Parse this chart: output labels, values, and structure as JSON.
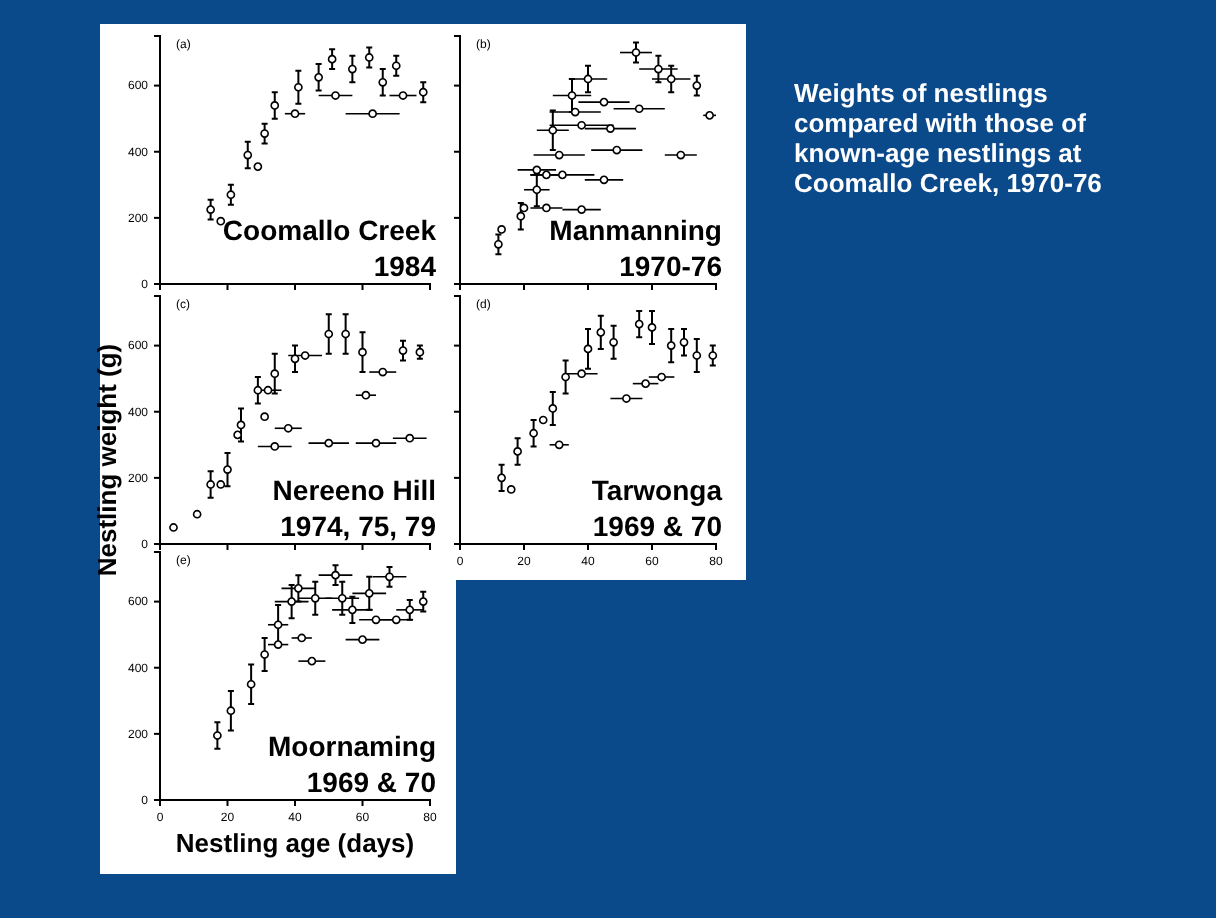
{
  "chart_data": [
    {
      "type": "scatter",
      "annotations": [
        "(a)",
        "Coomallo Creek",
        "1984"
      ],
      "xlim": [
        0,
        80
      ],
      "xticks": [
        0,
        20,
        40,
        60,
        80
      ],
      "ylim": [
        0,
        750
      ],
      "yticks": [
        0,
        200,
        400,
        600
      ],
      "tick_labels": "y",
      "marker": "circle",
      "grid": false,
      "series": [
        {
          "color": "#000000",
          "x": [
            15,
            18,
            21,
            26,
            29,
            31,
            34,
            40,
            41,
            47,
            51,
            52,
            57,
            62,
            63,
            66,
            70,
            72,
            78
          ],
          "values": [
            225,
            190,
            270,
            390,
            355,
            455,
            540,
            515,
            595,
            625,
            680,
            570,
            650,
            685,
            515,
            610,
            660,
            570,
            580
          ],
          "errors": [
            30,
            null,
            30,
            40,
            null,
            30,
            40,
            null,
            50,
            40,
            30,
            null,
            40,
            30,
            null,
            40,
            30,
            null,
            30
          ],
          "xerrors": [
            null,
            null,
            null,
            null,
            null,
            null,
            null,
            3,
            null,
            null,
            null,
            5,
            null,
            null,
            8,
            null,
            null,
            4,
            null
          ]
        }
      ]
    },
    {
      "type": "scatter",
      "annotations": [
        "(b)",
        "Manmanning",
        "1970-76"
      ],
      "xlim": [
        0,
        80
      ],
      "xticks": [
        0,
        20,
        40,
        60,
        80
      ],
      "ylim": [
        0,
        750
      ],
      "yticks": [
        0,
        200,
        400,
        600
      ],
      "tick_labels": false,
      "marker": "circle",
      "grid": false,
      "series": [
        {
          "color": "#000000",
          "x": [
            12,
            13,
            19,
            20,
            24,
            24,
            27,
            29,
            31,
            32,
            35,
            36,
            38,
            40,
            45,
            47,
            45,
            49,
            55,
            56,
            62,
            66,
            69,
            74,
            78,
            38,
            27
          ],
          "values": [
            120,
            165,
            205,
            230,
            285,
            345,
            330,
            465,
            390,
            330,
            570,
            520,
            480,
            620,
            550,
            470,
            315,
            405,
            700,
            530,
            650,
            620,
            390,
            600,
            510,
            225,
            230
          ],
          "errors": [
            30,
            null,
            40,
            null,
            50,
            null,
            null,
            60,
            null,
            null,
            50,
            null,
            null,
            40,
            null,
            null,
            null,
            null,
            30,
            null,
            40,
            40,
            null,
            30,
            null,
            null,
            null
          ],
          "xerrors": [
            null,
            null,
            null,
            null,
            4,
            6,
            5,
            5,
            8,
            10,
            6,
            8,
            10,
            6,
            8,
            8,
            6,
            8,
            5,
            8,
            6,
            6,
            5,
            null,
            2,
            6,
            5
          ]
        }
      ]
    },
    {
      "type": "scatter",
      "ylabel": "Nestling weight (g)",
      "annotations": [
        "(c)",
        "Nereeno Hill",
        "1974, 75, 79"
      ],
      "xlim": [
        0,
        80
      ],
      "xticks": [
        0,
        20,
        40,
        60,
        80
      ],
      "ylim": [
        0,
        750
      ],
      "yticks": [
        0,
        200,
        400,
        600
      ],
      "tick_labels": "y",
      "marker": "circle",
      "grid": false,
      "series": [
        {
          "color": "#000000",
          "x": [
            4,
            11,
            15,
            18,
            20,
            23,
            24,
            29,
            32,
            31,
            34,
            38,
            34,
            40,
            43,
            50,
            50,
            55,
            60,
            61,
            64,
            66,
            72,
            77,
            74
          ],
          "values": [
            50,
            90,
            180,
            180,
            225,
            330,
            360,
            465,
            465,
            385,
            515,
            350,
            295,
            560,
            570,
            635,
            305,
            635,
            580,
            450,
            305,
            520,
            585,
            580,
            320
          ],
          "errors": [
            null,
            null,
            40,
            null,
            50,
            null,
            50,
            40,
            null,
            null,
            60,
            null,
            null,
            40,
            null,
            60,
            null,
            60,
            60,
            null,
            null,
            null,
            30,
            20,
            null
          ],
          "xerrors": [
            null,
            null,
            null,
            null,
            null,
            null,
            null,
            null,
            4,
            null,
            null,
            4,
            5,
            null,
            5,
            null,
            6,
            null,
            null,
            3,
            6,
            4,
            null,
            null,
            5
          ]
        }
      ]
    },
    {
      "type": "scatter",
      "annotations": [
        "(d)",
        "Tarwonga",
        "1969 & 70"
      ],
      "xlim": [
        0,
        80
      ],
      "xticks": [
        0,
        20,
        40,
        60,
        80
      ],
      "ylim": [
        0,
        750
      ],
      "yticks": [
        0,
        200,
        400,
        600
      ],
      "tick_labels": "x",
      "marker": "circle",
      "grid": false,
      "series": [
        {
          "color": "#000000",
          "x": [
            13,
            16,
            18,
            23,
            26,
            29,
            31,
            33,
            38,
            40,
            44,
            48,
            52,
            56,
            60,
            58,
            63,
            66,
            70,
            74,
            79
          ],
          "values": [
            200,
            165,
            280,
            335,
            375,
            410,
            300,
            505,
            515,
            590,
            640,
            610,
            440,
            665,
            655,
            485,
            505,
            600,
            610,
            570,
            570
          ],
          "errors": [
            40,
            null,
            40,
            40,
            null,
            50,
            null,
            50,
            null,
            60,
            50,
            50,
            null,
            40,
            50,
            null,
            null,
            50,
            40,
            50,
            30
          ],
          "xerrors": [
            null,
            null,
            null,
            null,
            null,
            null,
            3,
            null,
            5,
            null,
            null,
            null,
            5,
            null,
            null,
            4,
            4,
            null,
            null,
            null,
            null
          ]
        }
      ]
    },
    {
      "type": "scatter",
      "xlabel": "Nestling age (days)",
      "annotations": [
        "(e)",
        "Moornaming",
        "1969 & 70"
      ],
      "xlim": [
        0,
        80
      ],
      "xticks": [
        0,
        20,
        40,
        60,
        80
      ],
      "ylim": [
        0,
        750
      ],
      "yticks": [
        0,
        200,
        400,
        600
      ],
      "marker": "circle",
      "grid": false,
      "series": [
        {
          "color": "#000000",
          "x": [
            17,
            21,
            27,
            31,
            35,
            35,
            42,
            45,
            39,
            41,
            46,
            52,
            54,
            57,
            60,
            62,
            64,
            68,
            70,
            74,
            78
          ],
          "values": [
            195,
            270,
            350,
            440,
            470,
            530,
            490,
            420,
            600,
            640,
            610,
            680,
            610,
            575,
            485,
            625,
            545,
            675,
            545,
            575,
            600
          ],
          "errors": [
            40,
            60,
            60,
            50,
            null,
            60,
            null,
            null,
            50,
            40,
            50,
            30,
            50,
            40,
            null,
            50,
            null,
            30,
            null,
            30,
            30
          ],
          "xerrors": [
            null,
            null,
            null,
            null,
            3,
            3,
            3,
            4,
            5,
            5,
            5,
            5,
            5,
            6,
            5,
            5,
            5,
            5,
            5,
            4,
            null
          ]
        }
      ]
    },
    {
      "type": "other",
      "title": "Weights of nestlings compared with those of known-age nestlings at Coomallo Creek, 1970-76"
    }
  ]
}
